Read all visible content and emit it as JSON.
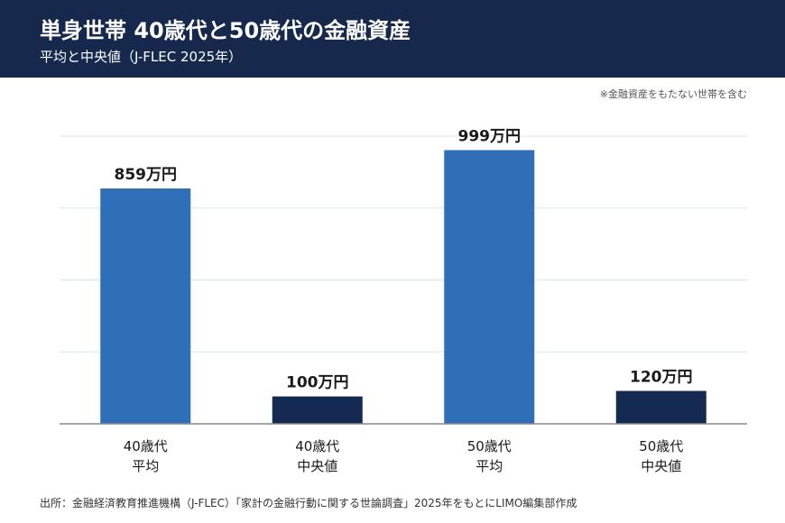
{
  "header": {
    "title": "単身世帯 40歳代と50歳代の金融資産",
    "subtitle": "平均と中央値（J-FLEC 2025年）"
  },
  "note": "※金融資産をもたない世帯を含む",
  "source": "出所：金融経済教育推進機構（J-FLEC）「家計の金融行動に関する世論調査」2025年をもとにLIMO編集部作成",
  "colors": {
    "header_bg": "#16294d",
    "mean_bar": "#2e6fb7",
    "median_bar": "#142a52",
    "grid": "#d6e6ef",
    "axis": "#8a8a8a"
  },
  "chart_data": {
    "type": "bar",
    "categories": [
      [
        "40歳代",
        "平均"
      ],
      [
        "40歳代",
        "中央値"
      ],
      [
        "50歳代",
        "平均"
      ],
      [
        "50歳代",
        "中央値"
      ]
    ],
    "values": [
      859,
      100,
      999,
      120
    ],
    "value_labels": [
      "859万円",
      "100万円",
      "999万円",
      "120万円"
    ],
    "bar_colors": [
      "#2e6fb7",
      "#142a52",
      "#2e6fb7",
      "#142a52"
    ],
    "ylim": [
      0,
      1050
    ],
    "grid": true,
    "title": "単身世帯 40歳代と50歳代の金融資産",
    "xlabel": "",
    "ylabel": ""
  }
}
